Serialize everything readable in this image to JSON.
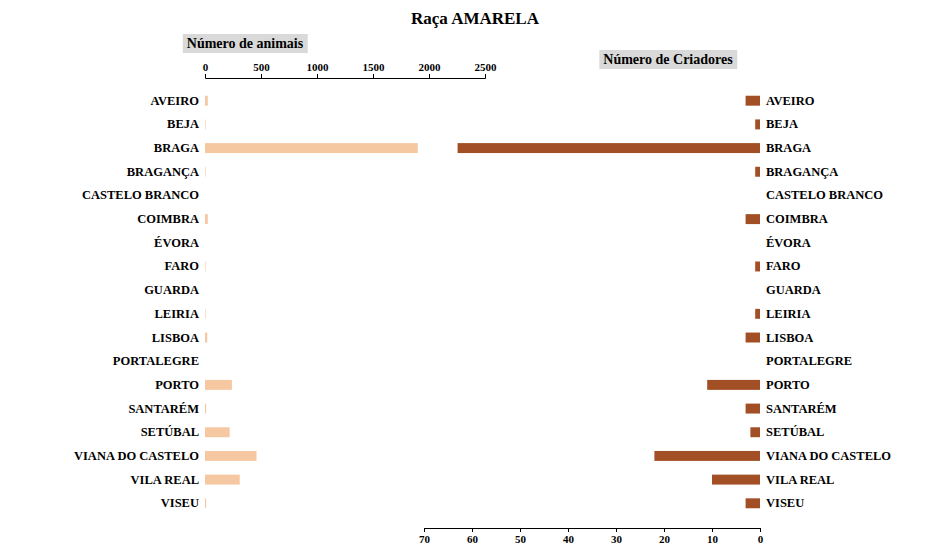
{
  "title": "Raça AMARELA",
  "chart_data": [
    {
      "type": "bar",
      "orientation": "horizontal",
      "title": "Número de animais",
      "categories": [
        "AVEIRO",
        "BEJA",
        "BRAGA",
        "BRAGANÇA",
        "CASTELO BRANCO",
        "COIMBRA",
        "ÉVORA",
        "FARO",
        "GUARDA",
        "LEIRIA",
        "LISBOA",
        "PORTALEGRE",
        "PORTO",
        "SANTARÉM",
        "SETÚBAL",
        "VIANA DO CASTELO",
        "VILA REAL",
        "VISEU"
      ],
      "values": [
        25,
        5,
        1900,
        5,
        0,
        25,
        0,
        5,
        0,
        5,
        20,
        0,
        240,
        10,
        220,
        460,
        310,
        10
      ],
      "color": "#f6c8a2",
      "xlim": [
        0,
        2500
      ],
      "xticks": [
        0,
        500,
        1000,
        1500,
        2000,
        2500
      ],
      "grid": false
    },
    {
      "type": "bar",
      "orientation": "horizontal",
      "title": "Número de Criadores",
      "categories": [
        "AVEIRO",
        "BEJA",
        "BRAGA",
        "BRAGANÇA",
        "CASTELO BRANCO",
        "COIMBRA",
        "ÉVORA",
        "FARO",
        "GUARDA",
        "LEIRIA",
        "LISBOA",
        "PORTALEGRE",
        "PORTO",
        "SANTARÉM",
        "SETÚBAL",
        "VIANA DO CASTELO",
        "VILA REAL",
        "VISEU"
      ],
      "values": [
        3,
        1,
        63,
        1,
        0,
        3,
        0,
        1,
        0,
        1,
        3,
        0,
        11,
        3,
        2,
        22,
        10,
        3
      ],
      "color": "#a34f25",
      "xlim": [
        0,
        70
      ],
      "xticks": [
        0,
        10,
        20,
        30,
        40,
        50,
        60,
        70
      ],
      "grid": false
    }
  ]
}
